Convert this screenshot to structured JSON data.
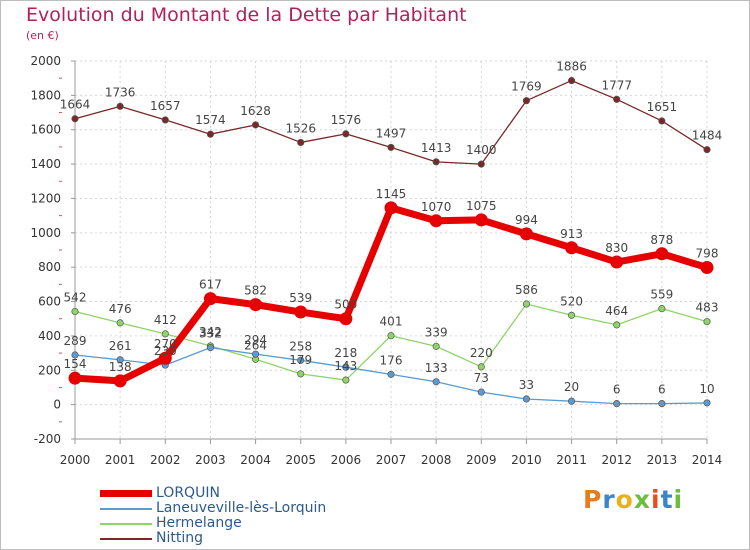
{
  "header": {
    "title": "Evolution du Montant de la Dette par Habitant",
    "subtitle": "(en €)"
  },
  "logo": {
    "text": "Proxiti",
    "colors": [
      "#e87a1f",
      "#3a86c8",
      "#e8b21f",
      "#6bbf3a",
      "#e84f1f",
      "#3a86c8",
      "#6bbf3a"
    ]
  },
  "chart_data": {
    "type": "line",
    "title": "Evolution du Montant de la Dette par Habitant",
    "subtitle": "(en €)",
    "xlabel": "",
    "ylabel": "",
    "x": [
      2000,
      2001,
      2002,
      2003,
      2004,
      2005,
      2006,
      2007,
      2008,
      2009,
      2010,
      2011,
      2012,
      2013,
      2014
    ],
    "ylim": [
      -200,
      2000
    ],
    "yticks": [
      -200,
      0,
      200,
      400,
      600,
      800,
      1000,
      1200,
      1400,
      1600,
      1800,
      2000
    ],
    "grid": true,
    "legend_position": "bottom-left",
    "series": [
      {
        "name": "Nitting",
        "color": "#7a2828",
        "values": [
          1664,
          1736,
          1657,
          1574,
          1628,
          1526,
          1576,
          1497,
          1413,
          1400,
          1769,
          1886,
          1777,
          1651,
          1484
        ]
      },
      {
        "name": "Hermelange",
        "color": "#8ed468",
        "values": [
          542,
          476,
          412,
          342,
          264,
          179,
          143,
          401,
          339,
          220,
          586,
          520,
          464,
          559,
          483
        ]
      },
      {
        "name": "Laneuveville-lès-Lorquin",
        "color": "#5b9bd1",
        "values": [
          289,
          261,
          230,
          332,
          294,
          258,
          218,
          176,
          133,
          73,
          33,
          20,
          6,
          6,
          10
        ]
      },
      {
        "name": "LORQUIN",
        "color": "#e60000",
        "values": [
          154,
          138,
          270,
          617,
          582,
          539,
          500,
          1145,
          1070,
          1075,
          994,
          913,
          830,
          878,
          798
        ]
      }
    ],
    "data_labels": {
      "Nitting": [
        "1664",
        "1736",
        "1657",
        "1574",
        "1628",
        "1526",
        "1576",
        "1497",
        "1413",
        "1400",
        "1769",
        "1886",
        "1777",
        "1651",
        "1484"
      ],
      "Hermelange": [
        "542",
        "476",
        "412",
        "342",
        "264",
        "179",
        "143",
        "401",
        "339",
        "220",
        "586",
        "520",
        "464",
        "559",
        "483"
      ],
      "Laneuveville-lès-Lorquin": [
        "289",
        "261",
        "230",
        "332",
        "294",
        "258",
        "218",
        "176",
        "133",
        "73",
        "33",
        "20",
        "6",
        "6",
        "10"
      ],
      "LORQUIN": [
        "154",
        "138",
        "270",
        "617",
        "582",
        "539",
        "500",
        "1145",
        "1070",
        "1075",
        "994",
        "913",
        "830",
        "878",
        "798"
      ]
    }
  },
  "legend": {
    "items": [
      {
        "label": "LORQUIN",
        "color": "#e60000"
      },
      {
        "label": "Laneuveville-lès-Lorquin",
        "color": "#5b9bd1"
      },
      {
        "label": "Hermelange",
        "color": "#8ed468"
      },
      {
        "label": "Nitting",
        "color": "#7a2828"
      }
    ]
  }
}
